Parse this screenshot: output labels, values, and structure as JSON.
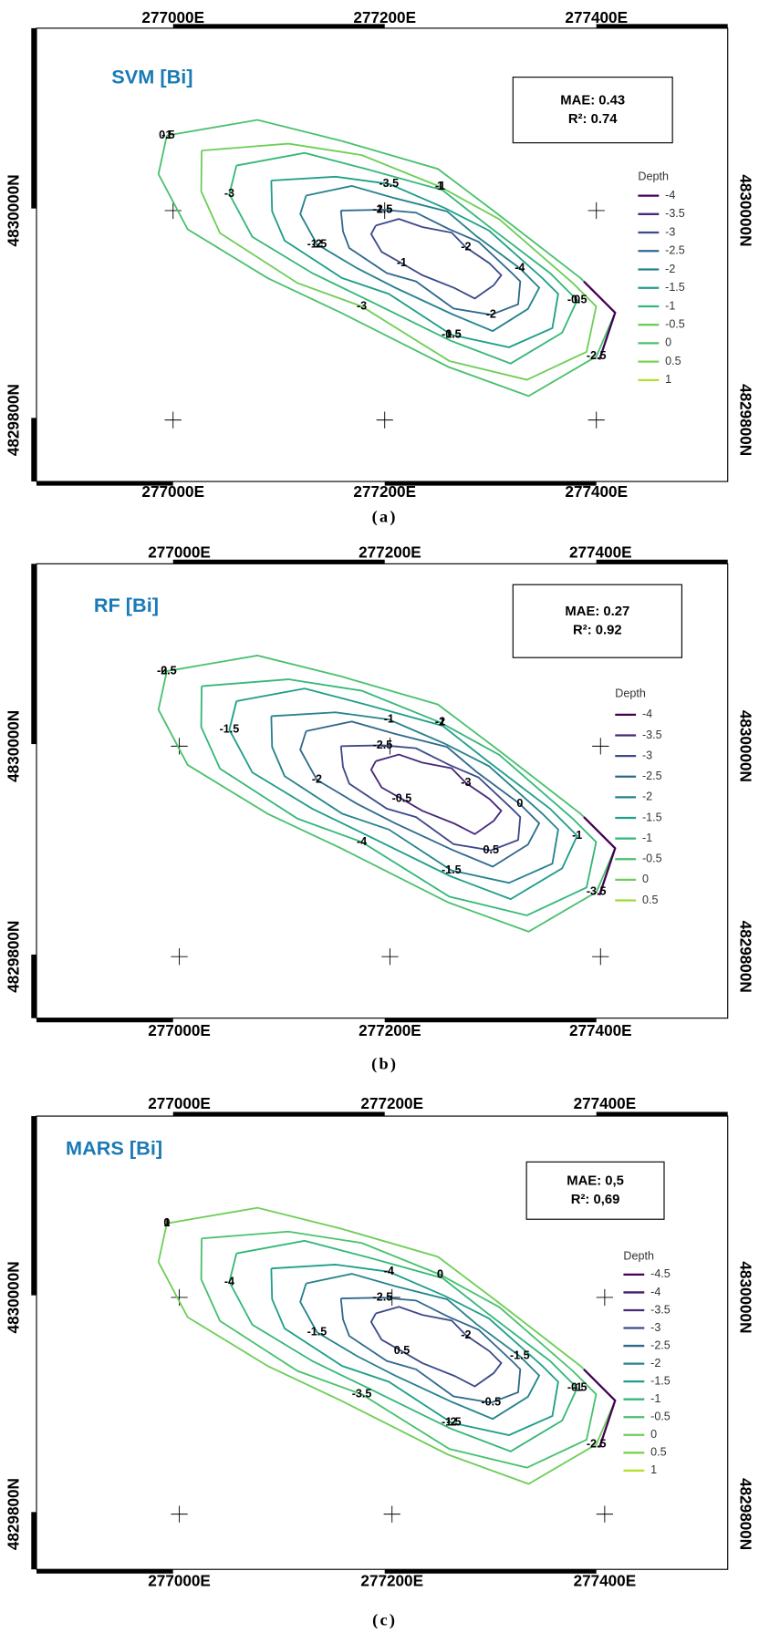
{
  "panels": [
    {
      "title": "SVM [Bi]",
      "caption": "(a)",
      "metrics": [
        "MAE: 0.43",
        "R²: 0.74"
      ],
      "x_labels": [
        "277000E",
        "277200E",
        "277400E"
      ],
      "y_labels": [
        "4830000N",
        "4829800N"
      ],
      "legend": {
        "title": "Depth",
        "levels": [
          -4,
          -3.5,
          -3,
          -2.5,
          -2,
          -1.5,
          -1,
          -0.5,
          0,
          0.5,
          1
        ],
        "colors": [
          "#440154",
          "#482878",
          "#3e4989",
          "#31688e",
          "#26828e",
          "#1f9e89",
          "#35b779",
          "#6ece58",
          "#4ac16d",
          "#7ad151",
          "#b5de2b"
        ]
      },
      "contour_labels": [
        "-1",
        "-1",
        "0",
        "-0.5",
        "-1.5",
        "-1.5",
        "-2",
        "-2.5",
        "-3",
        "-3",
        "-3.5",
        "-4",
        "-2",
        "-1",
        "0.5",
        "1",
        "-0.5",
        "-1.5",
        "-2",
        "-2.5"
      ]
    },
    {
      "title": "RF [Bi]",
      "caption": "(b)",
      "metrics": [
        "MAE: 0.27",
        "R²: 0.92"
      ],
      "x_labels": [
        "277000E",
        "277200E",
        "277400E"
      ],
      "y_labels": [
        "4830000N",
        "4829800N"
      ],
      "legend": {
        "title": "Depth",
        "levels": [
          -4,
          -3.5,
          -3,
          -2.5,
          -2,
          -1.5,
          -1,
          -0.5,
          0,
          0.5
        ],
        "colors": [
          "#440154",
          "#482878",
          "#3e4989",
          "#31688e",
          "#26828e",
          "#1f9e89",
          "#35b779",
          "#4ac16d",
          "#6ece58",
          "#9fda3a"
        ]
      },
      "contour_labels": [
        "-0.5",
        "-1",
        "-1",
        "-1.5",
        "-2",
        "-2.5",
        "-3",
        "-3.5",
        "-4",
        "-1.5",
        "-1",
        "0",
        "0.5",
        "-0.5",
        "-2.5",
        "-2"
      ]
    },
    {
      "title": "MARS [Bi]",
      "caption": "(c)",
      "metrics": [
        "MAE: 0,5",
        "R²: 0,69"
      ],
      "x_labels": [
        "277000E",
        "277200E",
        "277400E"
      ],
      "y_labels": [
        "4830000N",
        "4829800N"
      ],
      "legend": {
        "title": "Depth",
        "levels": [
          -4.5,
          -4,
          -3.5,
          -3,
          -2.5,
          -2,
          -1.5,
          -1,
          -0.5,
          0,
          0.5,
          1
        ],
        "colors": [
          "#440154",
          "#471a6e",
          "#482878",
          "#3e4989",
          "#31688e",
          "#26828e",
          "#1f9e89",
          "#35b779",
          "#4ac16d",
          "#6ece58",
          "#7ad151",
          "#b5de2b"
        ]
      },
      "contour_labels": [
        "0",
        "0",
        "-1",
        "-1.5",
        "-1.5",
        "-2.5",
        "-2",
        "-2.5",
        "-3.5",
        "-4",
        "-4",
        "-1.5",
        "-0.5",
        "0.5",
        "1",
        "0",
        "-0.5",
        "-2"
      ]
    }
  ]
}
